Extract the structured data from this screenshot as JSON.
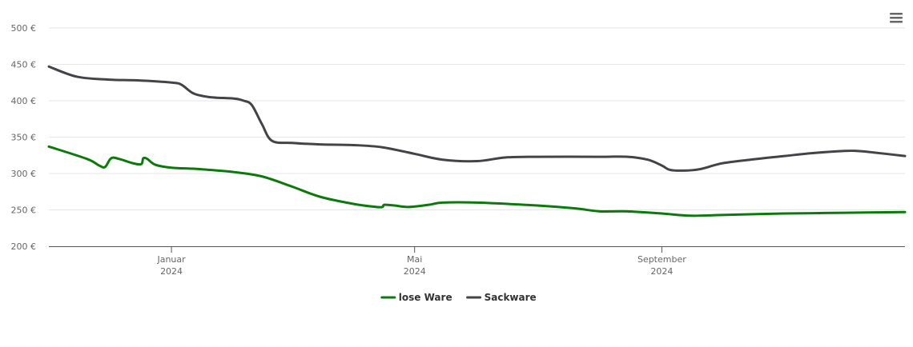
{
  "chart_data": {
    "type": "line",
    "title": "",
    "xlabel": "",
    "ylabel": "",
    "currency_suffix": " €",
    "ylim": [
      200,
      500
    ],
    "yticks": [
      200,
      250,
      300,
      350,
      400,
      450,
      500
    ],
    "ytick_labels": [
      "200 €",
      "250 €",
      "300 €",
      "350 €",
      "400 €",
      "450 €",
      "500 €"
    ],
    "xlim": [
      "2023-11-01",
      "2024-12-31"
    ],
    "xticks": [
      {
        "date": "2024-01-01",
        "month": "Januar",
        "year": "2024"
      },
      {
        "date": "2024-05-01",
        "month": "Mai",
        "year": "2024"
      },
      {
        "date": "2024-09-01",
        "month": "September",
        "year": "2024"
      }
    ],
    "grid": true,
    "legend_position": "bottom-center",
    "series": [
      {
        "name": "lose Ware",
        "color": "#0a7a0a",
        "points": [
          [
            "2023-11-01",
            337
          ],
          [
            "2023-11-20",
            320
          ],
          [
            "2023-11-26",
            311
          ],
          [
            "2023-11-29",
            309
          ],
          [
            "2023-12-02",
            321
          ],
          [
            "2023-12-06",
            320
          ],
          [
            "2023-12-13",
            314
          ],
          [
            "2023-12-17",
            313
          ],
          [
            "2023-12-18",
            321
          ],
          [
            "2023-12-20",
            320
          ],
          [
            "2023-12-24",
            312
          ],
          [
            "2024-01-01",
            308
          ],
          [
            "2024-01-15",
            306
          ],
          [
            "2024-02-01",
            302
          ],
          [
            "2024-02-15",
            296
          ],
          [
            "2024-03-01",
            282
          ],
          [
            "2024-03-15",
            268
          ],
          [
            "2024-04-01",
            258
          ],
          [
            "2024-04-12",
            254
          ],
          [
            "2024-04-15",
            254
          ],
          [
            "2024-04-16",
            257
          ],
          [
            "2024-04-21",
            256
          ],
          [
            "2024-04-28",
            254
          ],
          [
            "2024-05-08",
            257
          ],
          [
            "2024-05-15",
            260
          ],
          [
            "2024-06-01",
            260
          ],
          [
            "2024-07-01",
            256
          ],
          [
            "2024-07-20",
            252
          ],
          [
            "2024-08-01",
            248
          ],
          [
            "2024-08-15",
            248
          ],
          [
            "2024-09-01",
            245
          ],
          [
            "2024-09-15",
            242
          ],
          [
            "2024-10-01",
            243
          ],
          [
            "2024-11-01",
            245
          ],
          [
            "2024-12-01",
            246
          ],
          [
            "2024-12-31",
            247
          ]
        ]
      },
      {
        "name": "Sackware",
        "color": "#434348",
        "points": [
          [
            "2023-11-01",
            447
          ],
          [
            "2023-11-15",
            433
          ],
          [
            "2023-12-01",
            429
          ],
          [
            "2023-12-15",
            428
          ],
          [
            "2024-01-01",
            425
          ],
          [
            "2024-01-06",
            422
          ],
          [
            "2024-01-12",
            410
          ],
          [
            "2024-01-20",
            405
          ],
          [
            "2024-02-01",
            403
          ],
          [
            "2024-02-06",
            400
          ],
          [
            "2024-02-10",
            394
          ],
          [
            "2024-02-15",
            368
          ],
          [
            "2024-02-20",
            345
          ],
          [
            "2024-03-01",
            342
          ],
          [
            "2024-03-15",
            340
          ],
          [
            "2024-04-01",
            339
          ],
          [
            "2024-04-15",
            336
          ],
          [
            "2024-05-01",
            327
          ],
          [
            "2024-05-15",
            319
          ],
          [
            "2024-06-01",
            317
          ],
          [
            "2024-06-15",
            322
          ],
          [
            "2024-07-01",
            323
          ],
          [
            "2024-08-01",
            323
          ],
          [
            "2024-08-15",
            323
          ],
          [
            "2024-08-25",
            319
          ],
          [
            "2024-09-01",
            311
          ],
          [
            "2024-09-05",
            305
          ],
          [
            "2024-09-12",
            304
          ],
          [
            "2024-09-20",
            306
          ],
          [
            "2024-10-01",
            314
          ],
          [
            "2024-10-15",
            319
          ],
          [
            "2024-11-01",
            324
          ],
          [
            "2024-11-15",
            328
          ],
          [
            "2024-12-01",
            331
          ],
          [
            "2024-12-07",
            331
          ],
          [
            "2024-12-15",
            329
          ],
          [
            "2024-12-31",
            324
          ]
        ]
      }
    ]
  },
  "menu": {
    "icon": "hamburger-menu-icon"
  }
}
